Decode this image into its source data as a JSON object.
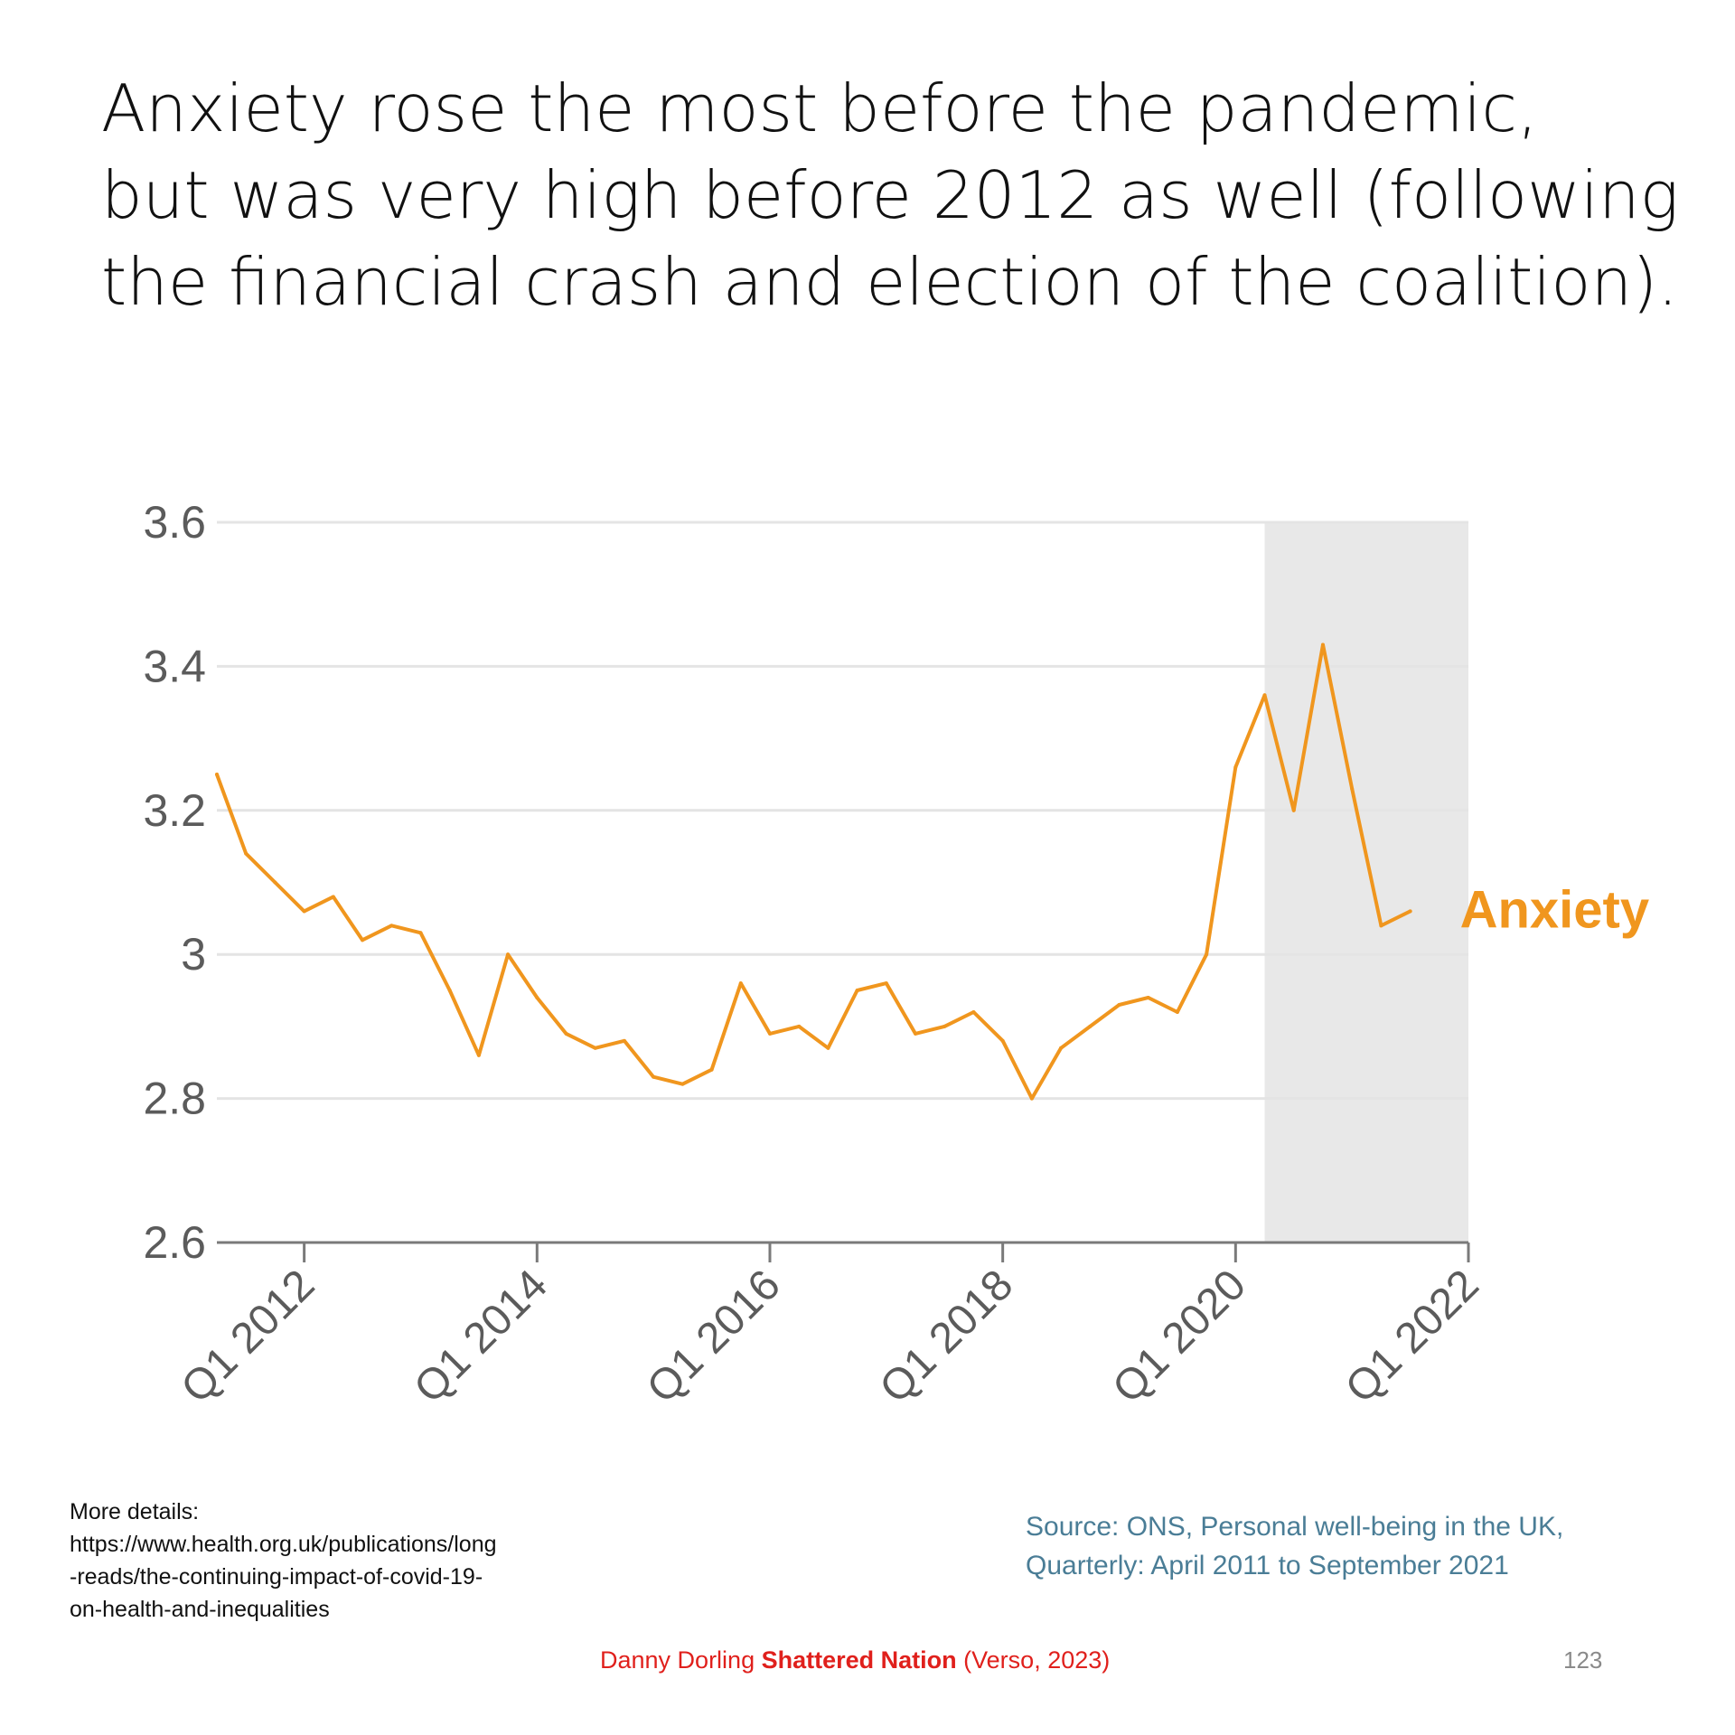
{
  "slide": {
    "title_lines": [
      "Anxiety rose the most before the pandemic,",
      "but was very high before 2012 as well (following",
      "the financial crash and election of the coalition)."
    ],
    "details_lines": [
      "More details:",
      "https://www.health.org.uk/publications/long",
      "-reads/the-continuing-impact-of-covid-19-",
      "on-health-and-inequalities"
    ],
    "source_lines": [
      "Source: ONS, Personal well-being in the UK,",
      "Quarterly: April 2011 to September 2021"
    ],
    "citation": {
      "author": "Danny Dorling",
      "book": "Shattered Nation",
      "publisher": "(Verso, 2023)"
    },
    "page_number": "123"
  },
  "colors": {
    "series": "#f0961e",
    "grid": "#e4e4e4",
    "axis": "#7a7a7a",
    "shade": "#e8e8e8",
    "tick_text": "#5b5b5b"
  },
  "chart_data": {
    "type": "line",
    "title": "",
    "xlabel": "",
    "ylabel": "",
    "ylim": [
      2.6,
      3.6
    ],
    "yticks": [
      {
        "value": 2.6,
        "label": "2.6"
      },
      {
        "value": 2.8,
        "label": "2.8"
      },
      {
        "value": 3.0,
        "label": "3"
      },
      {
        "value": 3.2,
        "label": "3.2"
      },
      {
        "value": 3.4,
        "label": "3.4"
      },
      {
        "value": 3.6,
        "label": "3.6"
      }
    ],
    "xlim": [
      2011.25,
      2022.0
    ],
    "xticks": [
      {
        "value": 2012,
        "label": "Q1 2012"
      },
      {
        "value": 2014,
        "label": "Q1 2014"
      },
      {
        "value": 2016,
        "label": "Q1 2016"
      },
      {
        "value": 2018,
        "label": "Q1 2018"
      },
      {
        "value": 2020,
        "label": "Q1 2020"
      },
      {
        "value": 2022,
        "label": "Q1 2022"
      }
    ],
    "shaded_region": [
      2020.25,
      2022.0
    ],
    "grid": true,
    "series": [
      {
        "name": "Anxiety",
        "x": [
          2011.25,
          2011.5,
          2011.75,
          2012.0,
          2012.25,
          2012.5,
          2012.75,
          2013.0,
          2013.25,
          2013.5,
          2013.75,
          2014.0,
          2014.25,
          2014.5,
          2014.75,
          2015.0,
          2015.25,
          2015.5,
          2015.75,
          2016.0,
          2016.25,
          2016.5,
          2016.75,
          2017.0,
          2017.25,
          2017.5,
          2017.75,
          2018.0,
          2018.25,
          2018.5,
          2018.75,
          2019.0,
          2019.25,
          2019.5,
          2019.75,
          2020.0,
          2020.25,
          2020.5,
          2020.75,
          2021.0,
          2021.25,
          2021.5
        ],
        "values": [
          3.25,
          3.14,
          3.1,
          3.06,
          3.08,
          3.02,
          3.04,
          3.03,
          2.95,
          2.86,
          3.0,
          2.94,
          2.89,
          2.87,
          2.88,
          2.83,
          2.82,
          2.84,
          2.96,
          2.89,
          2.9,
          2.87,
          2.95,
          2.96,
          2.89,
          2.9,
          2.92,
          2.88,
          2.8,
          2.87,
          2.9,
          2.93,
          2.94,
          2.92,
          3.0,
          3.26,
          3.36,
          3.2,
          3.43,
          3.23,
          3.04,
          3.06
        ]
      }
    ]
  }
}
